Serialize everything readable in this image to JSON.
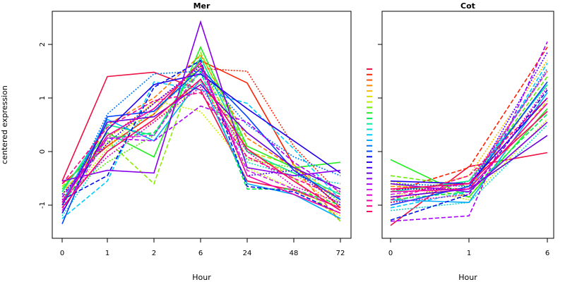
{
  "chart_data": [
    {
      "type": "line",
      "title": "Mer",
      "xlabel": "Hour",
      "ylabel": "centered expression",
      "categories": [
        "0",
        "1",
        "2",
        "6",
        "24",
        "48",
        "72"
      ],
      "ylim": [
        -1.5,
        2.5
      ],
      "yticks": [
        "-1",
        "0",
        "1",
        "2"
      ],
      "grid": false,
      "legend": "none",
      "series": [
        {
          "color": "#ee1144",
          "dash": "solid",
          "values": [
            -0.55,
            1.4,
            1.48,
            1.15,
            -0.55,
            -0.72,
            -1.05
          ]
        },
        {
          "color": "#ff2200",
          "dash": "solid",
          "values": [
            -0.6,
            0.1,
            0.7,
            1.7,
            1.28,
            -0.25,
            -1.05
          ]
        },
        {
          "color": "#ff2200",
          "dash": "dotted",
          "values": [
            -0.9,
            0.25,
            0.9,
            1.55,
            1.5,
            0.1,
            -0.8
          ]
        },
        {
          "color": "#ff7700",
          "dash": "dashed",
          "values": [
            -1.0,
            0.5,
            1.0,
            1.8,
            0.25,
            -0.3,
            -1.3
          ]
        },
        {
          "color": "#ffaa00",
          "dash": "dotted",
          "values": [
            -0.75,
            0.15,
            0.55,
            1.3,
            -0.1,
            -0.4,
            -1.1
          ]
        },
        {
          "color": "#ddcc00",
          "dash": "dashed",
          "values": [
            -0.8,
            0.3,
            0.7,
            1.6,
            0.0,
            -0.25,
            -0.9
          ]
        },
        {
          "color": "#ccee00",
          "dash": "dotted",
          "values": [
            -0.95,
            0.05,
            0.95,
            0.75,
            -0.3,
            -0.7,
            -1.2
          ]
        },
        {
          "color": "#88ee00",
          "dash": "dashed",
          "values": [
            -0.65,
            0.2,
            -0.6,
            1.85,
            0.05,
            -0.5,
            -1.3
          ]
        },
        {
          "color": "#55ee00",
          "dash": "dotted",
          "values": [
            -0.85,
            -0.2,
            0.3,
            1.65,
            -0.15,
            -0.3,
            -0.95
          ]
        },
        {
          "color": "#22ee22",
          "dash": "solid",
          "values": [
            -0.7,
            0.35,
            -0.1,
            1.95,
            0.1,
            -0.3,
            -0.2
          ]
        },
        {
          "color": "#00ee44",
          "dash": "dashed",
          "values": [
            -1.0,
            0.25,
            0.35,
            1.5,
            -0.7,
            -0.7,
            -1.0
          ]
        },
        {
          "color": "#00ee88",
          "dash": "solid",
          "values": [
            -0.75,
            0.5,
            0.3,
            1.75,
            0.0,
            -0.4,
            -0.8
          ]
        },
        {
          "color": "#00ddcc",
          "dash": "dotted",
          "values": [
            -1.2,
            0.0,
            0.8,
            1.45,
            -0.2,
            -0.45,
            -0.6
          ]
        },
        {
          "color": "#00ccff",
          "dash": "dashed",
          "values": [
            -1.25,
            -0.55,
            1.3,
            1.15,
            0.9,
            0.05,
            -0.9
          ]
        },
        {
          "color": "#00aaff",
          "dash": "solid",
          "values": [
            -0.95,
            0.6,
            0.2,
            1.35,
            -0.6,
            -0.8,
            -1.25
          ]
        },
        {
          "color": "#0077ff",
          "dash": "dotted",
          "values": [
            -1.05,
            0.7,
            1.45,
            1.5,
            0.5,
            -0.1,
            -0.45
          ]
        },
        {
          "color": "#0044ff",
          "dash": "solid",
          "values": [
            -1.35,
            0.65,
            0.75,
            1.55,
            0.65,
            -0.35,
            -0.9
          ]
        },
        {
          "color": "#0011ee",
          "dash": "dashed",
          "values": [
            -0.9,
            -0.45,
            1.2,
            1.7,
            -0.65,
            -0.75,
            -1.15
          ]
        },
        {
          "color": "#2200ee",
          "dash": "solid",
          "values": [
            -1.15,
            0.4,
            1.25,
            1.45,
            0.8,
            0.2,
            -0.4
          ]
        },
        {
          "color": "#4400ff",
          "dash": "dotted",
          "values": [
            -0.8,
            0.15,
            0.9,
            1.6,
            -0.45,
            -0.35,
            -1.0
          ]
        },
        {
          "color": "#6600dd",
          "dash": "solid",
          "values": [
            -1.0,
            0.55,
            0.65,
            1.25,
            0.35,
            -0.3,
            -0.7
          ]
        },
        {
          "color": "#8800ee",
          "dash": "solid",
          "values": [
            -0.55,
            -0.35,
            -0.4,
            2.42,
            -0.3,
            -0.45,
            -0.35
          ]
        },
        {
          "color": "#aa00ff",
          "dash": "dashed",
          "values": [
            -0.85,
            0.25,
            0.2,
            0.85,
            0.55,
            -0.2,
            -0.75
          ]
        },
        {
          "color": "#cc22ee",
          "dash": "dashed",
          "values": [
            -1.1,
            0.25,
            0.3,
            1.55,
            -0.35,
            -0.7,
            -1.05
          ]
        },
        {
          "color": "#dd00cc",
          "dash": "dotted",
          "values": [
            -0.9,
            -0.1,
            0.55,
            1.2,
            0.0,
            -0.65,
            -0.95
          ]
        },
        {
          "color": "#ee00aa",
          "dash": "solid",
          "values": [
            -0.95,
            0.3,
            0.8,
            1.65,
            -0.45,
            -0.8,
            -1.15
          ]
        },
        {
          "color": "#ff0088",
          "dash": "dashed",
          "values": [
            -0.6,
            0.45,
            0.95,
            1.1,
            -0.1,
            -0.5,
            -0.85
          ]
        },
        {
          "color": "#ff0066",
          "dash": "solid",
          "values": [
            -1.05,
            0.0,
            0.6,
            1.35,
            0.05,
            -0.55,
            -1.1
          ]
        }
      ]
    },
    {
      "type": "line",
      "title": "Cot",
      "xlabel": "Hour",
      "ylabel": "",
      "categories": [
        "0",
        "1",
        "6"
      ],
      "ylim": [
        -1.5,
        2.5
      ],
      "grid": false,
      "legend": "left",
      "series": [
        {
          "color": "#ee1144",
          "dash": "solid",
          "values": [
            -1.38,
            -0.28,
            -0.02
          ]
        },
        {
          "color": "#ff2200",
          "dash": "dashed",
          "values": [
            -0.75,
            -0.3,
            1.95
          ]
        },
        {
          "color": "#ff5500",
          "dash": "dotted",
          "values": [
            -0.95,
            -0.55,
            1.5
          ]
        },
        {
          "color": "#ff8800",
          "dash": "dashed",
          "values": [
            -0.65,
            -0.7,
            1.3
          ]
        },
        {
          "color": "#ffbb00",
          "dash": "dotted",
          "values": [
            -0.85,
            -0.45,
            1.7
          ]
        },
        {
          "color": "#dddd00",
          "dash": "dashed",
          "values": [
            -0.55,
            -0.85,
            0.95
          ]
        },
        {
          "color": "#bbee00",
          "dash": "dotted",
          "values": [
            -0.6,
            -0.9,
            0.6
          ]
        },
        {
          "color": "#66ee00",
          "dash": "dashed",
          "values": [
            -0.45,
            -0.65,
            1.4
          ]
        },
        {
          "color": "#22ee22",
          "dash": "solid",
          "values": [
            -0.15,
            -0.85,
            0.8
          ]
        },
        {
          "color": "#00ee55",
          "dash": "dashed",
          "values": [
            -0.9,
            -0.75,
            0.7
          ]
        },
        {
          "color": "#00ee99",
          "dash": "solid",
          "values": [
            -0.75,
            -0.55,
            1.25
          ]
        },
        {
          "color": "#00ddcc",
          "dash": "dotted",
          "values": [
            -1.1,
            -0.95,
            0.5
          ]
        },
        {
          "color": "#00ccff",
          "dash": "dashed",
          "values": [
            -1.05,
            -0.75,
            1.65
          ]
        },
        {
          "color": "#00aaff",
          "dash": "solid",
          "values": [
            -0.9,
            -0.95,
            1.1
          ]
        },
        {
          "color": "#0077ff",
          "dash": "dotted",
          "values": [
            -0.6,
            -0.65,
            1.55
          ]
        },
        {
          "color": "#0044ff",
          "dash": "solid",
          "values": [
            -1.0,
            -0.65,
            1.3
          ]
        },
        {
          "color": "#0011ee",
          "dash": "dashed",
          "values": [
            -1.28,
            -0.8,
            1.15
          ]
        },
        {
          "color": "#2200ee",
          "dash": "solid",
          "values": [
            -0.55,
            -0.6,
            1.0
          ]
        },
        {
          "color": "#4400ff",
          "dash": "dotted",
          "values": [
            -0.7,
            -0.7,
            1.85
          ]
        },
        {
          "color": "#6600dd",
          "dash": "solid",
          "values": [
            -0.85,
            -0.7,
            0.3
          ]
        },
        {
          "color": "#8800ee",
          "dash": "solid",
          "values": [
            -0.6,
            -0.75,
            0.55
          ]
        },
        {
          "color": "#aa00ff",
          "dash": "dashed",
          "values": [
            -1.3,
            -1.2,
            2.05
          ]
        },
        {
          "color": "#cc22ee",
          "dash": "dashed",
          "values": [
            -0.8,
            -0.6,
            1.5
          ]
        },
        {
          "color": "#dd00cc",
          "dash": "dotted",
          "values": [
            -0.95,
            -0.8,
            1.2
          ]
        },
        {
          "color": "#ee00aa",
          "dash": "solid",
          "values": [
            -0.75,
            -0.7,
            0.9
          ]
        },
        {
          "color": "#ff0088",
          "dash": "dashed",
          "values": [
            -0.9,
            -0.45,
            1.0
          ]
        },
        {
          "color": "#ff0066",
          "dash": "solid",
          "values": [
            -0.7,
            -0.6,
            0.75
          ]
        }
      ]
    }
  ]
}
